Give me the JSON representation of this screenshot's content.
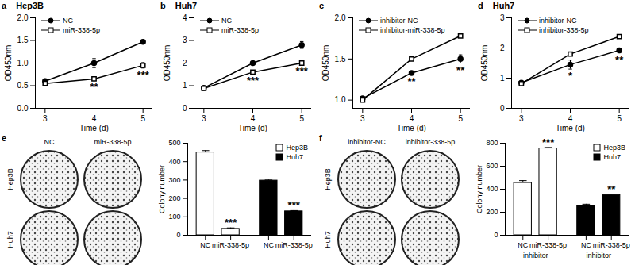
{
  "chart_data": [
    {
      "type": "line",
      "panel": "a",
      "title": "Hep3B",
      "xlabel": "Time (d)",
      "ylabel": "OD450nm",
      "x": [
        3,
        4,
        5
      ],
      "xlim": [
        2.8,
        5.2
      ],
      "xticks": [
        3,
        4,
        5
      ],
      "ylim": [
        0,
        2
      ],
      "yticks": [
        {
          "value": 0,
          "label": "0.0"
        },
        0.5,
        {
          "value": 1,
          "label": "1.0"
        },
        1.5,
        {
          "value": 2,
          "label": "2.0"
        }
      ],
      "legend": "top-left",
      "series": [
        {
          "name": "NC",
          "color": "#000000",
          "marker": "circle",
          "line_style": "solid",
          "values": [
            0.6,
            1.0,
            1.47
          ],
          "errors": [
            0.05,
            0.1,
            0.04
          ]
        },
        {
          "name": "miR-338-5p",
          "color": "#000000",
          "marker": "open square",
          "line_style": "solid",
          "values": [
            0.55,
            0.65,
            0.95
          ],
          "errors": [
            0.03,
            0.02,
            0.06
          ]
        }
      ],
      "annotations": [
        {
          "x": 4,
          "text": "**"
        },
        {
          "x": 5,
          "text": "***"
        }
      ]
    },
    {
      "type": "line",
      "panel": "b",
      "title": "Huh7",
      "xlabel": "Time (d)",
      "ylabel": "OD450nm",
      "x": [
        3,
        4,
        5
      ],
      "xlim": [
        2.8,
        5.2
      ],
      "xticks": [
        3,
        4,
        5
      ],
      "ylim": [
        0,
        4
      ],
      "yticks": [
        0,
        1,
        2,
        3,
        4
      ],
      "legend": "top-left",
      "series": [
        {
          "name": "NC",
          "color": "#000000",
          "marker": "circle",
          "line_style": "solid",
          "values": [
            0.9,
            2.0,
            2.8
          ],
          "errors": [
            0.05,
            0.06,
            0.15
          ]
        },
        {
          "name": "miR-338-5p",
          "color": "#000000",
          "marker": "open square",
          "line_style": "solid",
          "values": [
            0.88,
            1.6,
            2.0
          ],
          "errors": [
            0.04,
            0.05,
            0.05
          ]
        }
      ],
      "annotations": [
        {
          "x": 4,
          "text": "***"
        },
        {
          "x": 5,
          "text": "***"
        }
      ]
    },
    {
      "type": "line",
      "panel": "c",
      "xlabel": "Time (d)",
      "ylabel": "OD450nm",
      "x": [
        3,
        4,
        5
      ],
      "xlim": [
        2.8,
        5.2
      ],
      "xticks": [
        3,
        4,
        5
      ],
      "ylim": [
        0.9,
        2
      ],
      "yticks": [
        {
          "value": 1,
          "label": "1.0"
        },
        1.5,
        {
          "value": 2,
          "label": "2.0"
        }
      ],
      "legend": "top-left",
      "series": [
        {
          "name": "inhibitor-NC",
          "color": "#000000",
          "marker": "circle",
          "line_style": "solid",
          "values": [
            1.02,
            1.33,
            1.5
          ],
          "errors": [
            0.02,
            0.02,
            0.05
          ]
        },
        {
          "name": "inhibitor-miR-338-5p",
          "color": "#000000",
          "marker": "open square",
          "line_style": "solid",
          "values": [
            1.0,
            1.5,
            1.78
          ],
          "errors": [
            0.02,
            0.02,
            0.02
          ]
        }
      ],
      "annotations": [
        {
          "x": 4,
          "text": "**"
        },
        {
          "x": 5,
          "text": "**"
        }
      ]
    },
    {
      "type": "line",
      "panel": "d",
      "title": "Huh7",
      "xlabel": "Time (d)",
      "ylabel": "OD450nm",
      "x": [
        3,
        4,
        5
      ],
      "xlim": [
        2.8,
        5.2
      ],
      "xticks": [
        3,
        4,
        5
      ],
      "ylim": [
        0,
        3
      ],
      "yticks": [
        0,
        1,
        2,
        3
      ],
      "legend": "top-left",
      "series": [
        {
          "name": "inhibitor-NC",
          "color": "#000000",
          "marker": "circle",
          "line_style": "solid",
          "values": [
            0.85,
            1.45,
            1.92
          ],
          "errors": [
            0.05,
            0.15,
            0.08
          ]
        },
        {
          "name": "inhibitor-338-5p",
          "color": "#000000",
          "marker": "open square",
          "line_style": "solid",
          "values": [
            0.82,
            1.8,
            2.38
          ],
          "errors": [
            0.04,
            0.05,
            0.04
          ]
        }
      ],
      "annotations": [
        {
          "x": 4,
          "text": "*"
        },
        {
          "x": 5,
          "text": "**"
        }
      ]
    },
    {
      "type": "bar",
      "ylabel": "Colony number",
      "categories": [
        "NC",
        "miR-338-5p"
      ],
      "ylim": [
        0,
        500
      ],
      "yticks": [
        0,
        100,
        200,
        300,
        400,
        500
      ],
      "legend": "top-right",
      "series": [
        {
          "name": "Hep3B",
          "color": "#ffffff",
          "values": [
            450,
            35
          ],
          "errors": [
            10,
            5
          ]
        },
        {
          "name": "Huh7",
          "color": "#000000",
          "values": [
            297,
            130
          ],
          "errors": [
            3,
            4
          ]
        }
      ],
      "annotations": [
        {
          "series": "Hep3B",
          "category": "miR-338-5p",
          "text": "***"
        },
        {
          "series": "Huh7",
          "category": "miR-338-5p",
          "text": "***"
        }
      ]
    },
    {
      "type": "bar",
      "ylabel": "Colony number",
      "categories": [
        "NC",
        "miR-338-5p"
      ],
      "group_labels": [
        "inhibitor",
        "inhibitor"
      ],
      "ylim": [
        0,
        800
      ],
      "yticks": [
        0,
        200,
        400,
        600,
        800
      ],
      "legend": "top-right",
      "series": [
        {
          "name": "Hep3B",
          "color": "#ffffff",
          "values": [
            455,
            755
          ],
          "errors": [
            20,
            8
          ]
        },
        {
          "name": "Huh7",
          "color": "#000000",
          "values": [
            258,
            350
          ],
          "errors": [
            12,
            8
          ]
        }
      ],
      "annotations": [
        {
          "series": "Hep3B",
          "category": "miR-338-5p",
          "text": "***"
        },
        {
          "series": "Huh7",
          "category": "miR-338-5p",
          "text": "**"
        }
      ]
    }
  ],
  "images": [
    {
      "panel": "e",
      "columns": [
        "NC",
        "miR-338-5p"
      ],
      "rows": [
        "Hep3B",
        "Huh7"
      ]
    },
    {
      "panel": "f",
      "columns": [
        "inhibitor-NC",
        "inhibitor-338-5p"
      ],
      "rows": [
        "Hep3B",
        "Huh7"
      ]
    }
  ]
}
